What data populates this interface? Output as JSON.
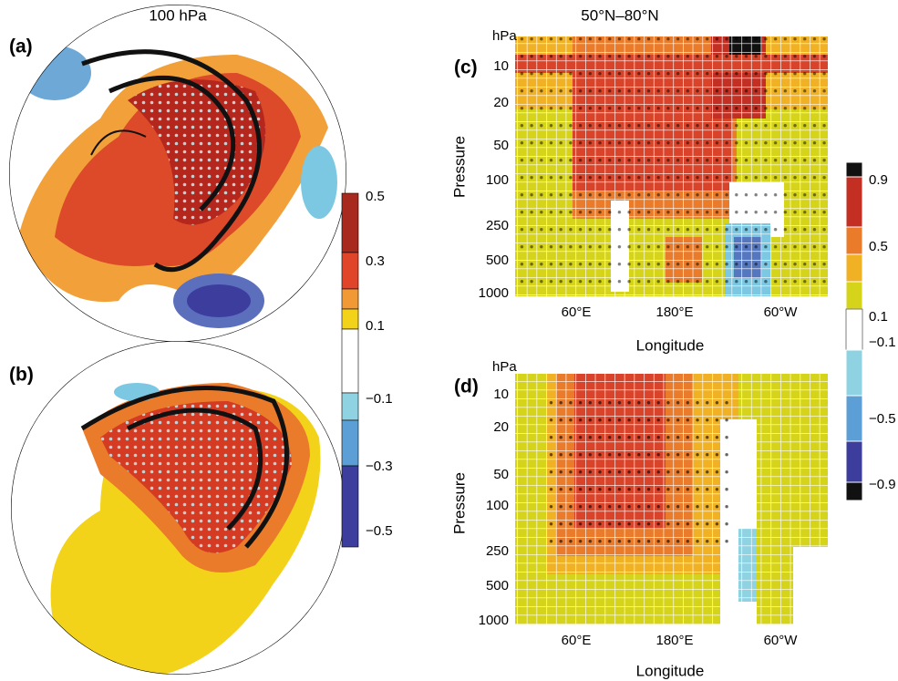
{
  "left": {
    "title": "100 hPa",
    "panels": [
      {
        "label": "(a)"
      },
      {
        "label": "(b)"
      }
    ],
    "colorbar": {
      "ticks": [
        "0.5",
        "0.3",
        "0.1",
        "−0.1",
        "−0.3",
        "−0.5"
      ]
    }
  },
  "right": {
    "title": "50°N–80°N",
    "panels": [
      {
        "label": "(c)",
        "y_unit": "hPa",
        "y_label": "Pressure",
        "y_ticks": [
          "10",
          "20",
          "50",
          "100",
          "250",
          "500",
          "1000"
        ],
        "x_ticks": [
          "60°E",
          "180°E",
          "60°W"
        ],
        "x_label": "Longitude"
      },
      {
        "label": "(d)",
        "y_unit": "hPa",
        "y_label": "Pressure",
        "y_ticks": [
          "10",
          "20",
          "50",
          "100",
          "250",
          "500",
          "1000"
        ],
        "x_ticks": [
          "60°E",
          "180°E",
          "60°W"
        ],
        "x_label": "Longitude"
      }
    ],
    "colorbar": {
      "ticks": [
        "0.9",
        "0.5",
        "0.1",
        "−0.1",
        "−0.5",
        "−0.9"
      ]
    }
  }
}
